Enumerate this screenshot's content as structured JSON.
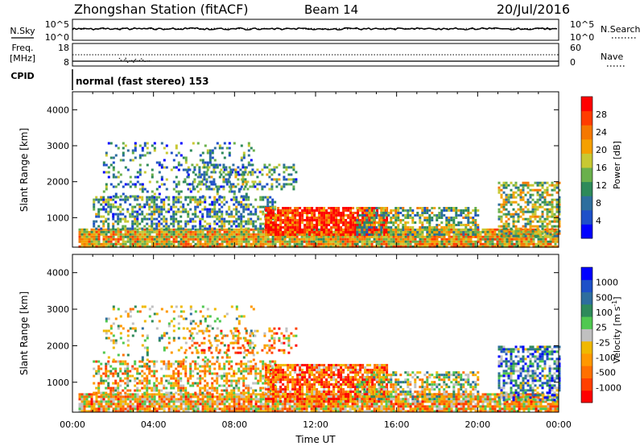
{
  "header": {
    "station": "Zhongshan Station (fitACF)",
    "beam": "Beam 14",
    "date": "20/Jul/2016"
  },
  "top_panels": {
    "nsky_label": "N.Sky",
    "nsky_tick_top": "10^5",
    "nsky_tick_bottom": "10^0",
    "nsearch_label": "N.Search",
    "nsearch_tick_top": "10^5",
    "nsearch_tick_bottom": "10^0",
    "freq_label_1": "Freq.",
    "freq_label_2": "[MHz]",
    "freq_tick_top": "18",
    "freq_tick_bottom": "8",
    "nave_label": "Nave",
    "nave_tick_top": "60",
    "nave_tick_bottom": "0",
    "cpid_label": "CPID",
    "cpid_text": "normal (fast stereo) 153"
  },
  "chart_data": [
    {
      "type": "heatmap",
      "name": "power",
      "ylabel": "Slant Range [km]",
      "yticks": [
        "1000",
        "2000",
        "3000",
        "4000"
      ],
      "ylim": [
        180,
        4500
      ],
      "xlim": [
        0,
        24
      ],
      "colorbar_label": "Power [dB]",
      "colorbar_ticks": [
        "4",
        "8",
        "12",
        "16",
        "20",
        "24",
        "28"
      ],
      "colorbar_colors": [
        "#0000ff",
        "#1e50c8",
        "#2e6e9e",
        "#2e8a5a",
        "#6ab04c",
        "#c8c832",
        "#f5a000",
        "#f57800",
        "#ff3c00",
        "#ff0000"
      ],
      "scatter_regions": [
        {
          "x0": 0.3,
          "x1": 24,
          "r0": 200,
          "r1": 700,
          "level": 0.62,
          "density": 0.95
        },
        {
          "x0": 1.0,
          "x1": 10,
          "r0": 700,
          "r1": 1600,
          "level": 0.35,
          "density": 0.55
        },
        {
          "x0": 9.5,
          "x1": 15.5,
          "r0": 500,
          "r1": 1300,
          "level": 0.9,
          "density": 0.85
        },
        {
          "x0": 14,
          "x1": 20,
          "r0": 500,
          "r1": 1300,
          "level": 0.45,
          "density": 0.6
        },
        {
          "x0": 1.5,
          "x1": 9,
          "r0": 1600,
          "r1": 3100,
          "level": 0.3,
          "density": 0.2
        },
        {
          "x0": 5.5,
          "x1": 11,
          "r0": 1800,
          "r1": 2500,
          "level": 0.35,
          "density": 0.35
        },
        {
          "x0": 21,
          "x1": 24,
          "r0": 500,
          "r1": 2000,
          "level": 0.5,
          "density": 0.6
        }
      ]
    },
    {
      "type": "heatmap",
      "name": "velocity",
      "ylabel": "Slant Range [km]",
      "yticks": [
        "1000",
        "2000",
        "3000",
        "4000"
      ],
      "ylim": [
        180,
        4500
      ],
      "xlim": [
        0,
        24
      ],
      "xticks": [
        "00:00",
        "04:00",
        "08:00",
        "12:00",
        "16:00",
        "20:00",
        "00:00"
      ],
      "xlabel": "Time UT",
      "colorbar_label": "Velocity [m s",
      "colorbar_label_sup": "-1",
      "colorbar_label_end": "]",
      "colorbar_ticks": [
        "-1000",
        "-500",
        "-100",
        "-25",
        "25",
        "100",
        "500",
        "1000"
      ],
      "colorbar_colors": [
        "#ff0000",
        "#ff4000",
        "#ff7000",
        "#ff9800",
        "#f0b800",
        "#c0c0c0",
        "#50c850",
        "#2e8a5a",
        "#2e6e9e",
        "#1e50c8",
        "#0000ff"
      ],
      "scatter_regions": [
        {
          "x0": 0.3,
          "x1": 24,
          "r0": 200,
          "r1": 700,
          "level": 0.35,
          "density": 0.9
        },
        {
          "x0": 1.0,
          "x1": 10,
          "r0": 700,
          "r1": 1600,
          "level": 0.4,
          "density": 0.5
        },
        {
          "x0": 9.5,
          "x1": 15.5,
          "r0": 500,
          "r1": 1500,
          "level": 0.2,
          "density": 0.8
        },
        {
          "x0": 14,
          "x1": 20,
          "r0": 500,
          "r1": 1300,
          "level": 0.5,
          "density": 0.55
        },
        {
          "x0": 1.5,
          "x1": 9,
          "r0": 1600,
          "r1": 3100,
          "level": 0.5,
          "density": 0.15
        },
        {
          "x0": 5.5,
          "x1": 11,
          "r0": 1800,
          "r1": 2500,
          "level": 0.3,
          "density": 0.3
        },
        {
          "x0": 21,
          "x1": 24,
          "r0": 500,
          "r1": 2000,
          "level": 0.7,
          "density": 0.6
        }
      ]
    }
  ]
}
